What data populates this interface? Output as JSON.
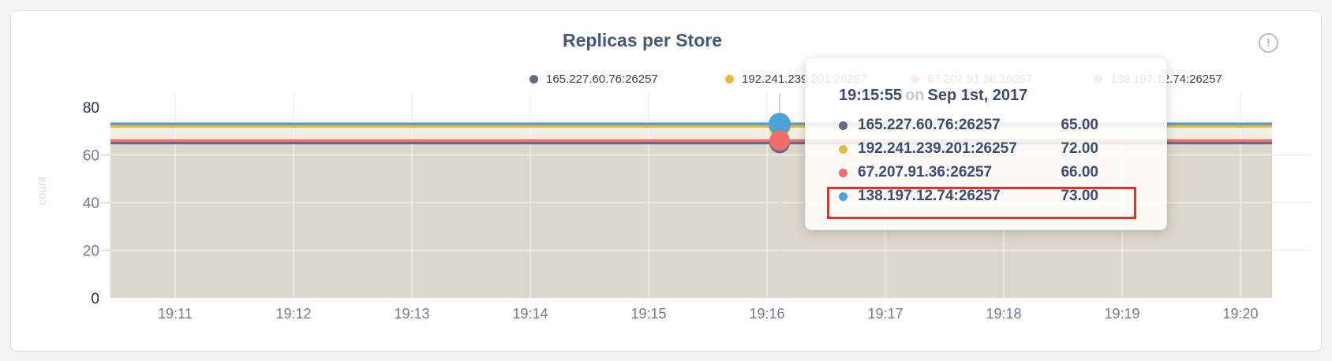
{
  "panel": {
    "title": "Replicas per Store",
    "alert_glyph": "!"
  },
  "chart_data": {
    "type": "line",
    "title": "Replicas per Store",
    "xlabel": "",
    "ylabel": "count",
    "ylim": [
      0,
      80
    ],
    "yticks": [
      0,
      20,
      40,
      60,
      80
    ],
    "xticks": [
      "19:11",
      "19:12",
      "19:13",
      "19:14",
      "19:15",
      "19:16",
      "19:17",
      "19:18",
      "19:19",
      "19:20"
    ],
    "grid": true,
    "legend_position": "top",
    "area_fill": true,
    "series": [
      {
        "name": "165.227.60.76:26257",
        "color": "#5f6c87",
        "shape": "flat",
        "value": 65
      },
      {
        "name": "192.241.239.201:26257",
        "color": "#eab83d",
        "shape": "flat",
        "value": 72
      },
      {
        "name": "67.207.91.36:26257",
        "color": "#f16d68",
        "shape": "flat",
        "value": 66
      },
      {
        "name": "138.197.12.74:26257",
        "color": "#4ba3d6",
        "shape": "flat",
        "value": 73
      }
    ],
    "hover_time": "19:15:55"
  },
  "tooltip": {
    "time": "19:15:55",
    "on_word": "on",
    "date": "Sep 1st, 2017",
    "highlight_color": "#e53126",
    "rows": [
      {
        "name": "165.227.60.76:26257",
        "value": "65.00",
        "color": "#5f6c87",
        "highlighted": false
      },
      {
        "name": "192.241.239.201:26257",
        "value": "72.00",
        "color": "#eab83d",
        "highlighted": false
      },
      {
        "name": "67.207.91.36:26257",
        "value": "66.00",
        "color": "#f16d68",
        "highlighted": false
      },
      {
        "name": "138.197.12.74:26257",
        "value": "73.00",
        "color": "#4ba3d6",
        "highlighted": true
      }
    ]
  }
}
